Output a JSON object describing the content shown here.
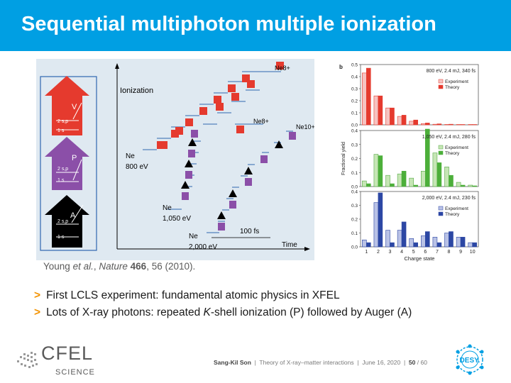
{
  "header": {
    "title": "Sequential multiphoton multiple ionization"
  },
  "figure_a": {
    "ionization_label": "Ionization",
    "time_label": "Time",
    "time_scale_label": "100 fs",
    "ne_label": "Ne",
    "e800_label": "800 eV",
    "e1050_label": "1,050 eV",
    "e2000_label": "2,000 eV",
    "ne8_label": "Ne8+",
    "ne10_label": "Ne10+",
    "letter_v": "V",
    "letter_p": "P",
    "letter_a": "A",
    "shell_2sp": "2 s,p",
    "shell_1s": "1 s",
    "colors": {
      "v": "#e53a2e",
      "p": "#8b4fa8",
      "a": "#000000",
      "bg": "#dfe9f1"
    }
  },
  "chart_data": [
    {
      "type": "bar",
      "panel_label": "b",
      "annotation": "800 eV, 2.4 mJ, 340 fs",
      "categories": [
        "1",
        "2",
        "3",
        "4",
        "5",
        "6",
        "7",
        "8",
        "9",
        "10"
      ],
      "series": [
        {
          "name": "Experiment",
          "color_fill": "#f6c3c1",
          "color_stroke": "#e53a2e",
          "values": [
            0.43,
            0.24,
            0.14,
            0.07,
            0.03,
            0.01,
            0.005,
            0.003,
            0.002,
            0.001
          ]
        },
        {
          "name": "Theory",
          "color_fill": "#e53a2e",
          "color_stroke": "#e53a2e",
          "values": [
            0.47,
            0.24,
            0.14,
            0.08,
            0.04,
            0.015,
            0.008,
            0.005,
            0.003,
            0.002
          ]
        }
      ],
      "ylim": [
        0,
        0.5
      ],
      "yticks": [
        "0.0",
        "0.1",
        "0.2",
        "0.3",
        "0.4",
        "0.5"
      ]
    },
    {
      "type": "bar",
      "annotation": "1,050 eV, 2.4 mJ, 280 fs",
      "categories": [
        "1",
        "2",
        "3",
        "4",
        "5",
        "6",
        "7",
        "8",
        "9",
        "10"
      ],
      "series": [
        {
          "name": "Experiment",
          "color_fill": "#c6e6b5",
          "color_stroke": "#55a845",
          "values": [
            0.04,
            0.23,
            0.08,
            0.09,
            0.06,
            0.11,
            0.24,
            0.14,
            0.03,
            0.01
          ]
        },
        {
          "name": "Theory",
          "color_fill": "#4caf3a",
          "color_stroke": "#4caf3a",
          "values": [
            0.02,
            0.22,
            0.02,
            0.11,
            0.01,
            0.41,
            0.17,
            0.08,
            0.01,
            0.005
          ]
        }
      ],
      "ylim": [
        0,
        0.4
      ],
      "yticks": [
        "0.0",
        "0.1",
        "0.2",
        "0.3",
        "0.4"
      ],
      "ylabel": "Fractional yield"
    },
    {
      "type": "bar",
      "annotation": "2,000 eV, 2.4 mJ, 230 fs",
      "categories": [
        "1",
        "2",
        "3",
        "4",
        "5",
        "6",
        "7",
        "8",
        "9",
        "10"
      ],
      "series": [
        {
          "name": "Experiment",
          "color_fill": "#b9c2e6",
          "color_stroke": "#2c47a4",
          "values": [
            0.05,
            0.32,
            0.12,
            0.12,
            0.06,
            0.08,
            0.07,
            0.1,
            0.07,
            0.03
          ]
        },
        {
          "name": "Theory",
          "color_fill": "#2c47a4",
          "color_stroke": "#2c47a4",
          "values": [
            0.03,
            0.39,
            0.03,
            0.18,
            0.03,
            0.11,
            0.03,
            0.11,
            0.07,
            0.03
          ]
        }
      ],
      "ylim": [
        0,
        0.4
      ],
      "yticks": [
        "0.0",
        "0.1",
        "0.2",
        "0.3",
        "0.4"
      ],
      "xlabel": "Charge state"
    }
  ],
  "citation": {
    "authors": "Young ",
    "etal": "et al.",
    "journal": "Nature",
    "volume": "466",
    "pages": ", 56 (2010)."
  },
  "bullets": {
    "arrow": ">",
    "b1": "First LCLS experiment: fundamental atomic physics in XFEL",
    "b2_pre": "Lots of X-ray photons: repeated ",
    "b2_k": "K",
    "b2_post": "-shell ionization (P) followed by Auger (A)"
  },
  "footer": {
    "cfel": "CFEL",
    "science": "SCIENCE",
    "author": "Sang-Kil Son",
    "sep": "|",
    "talk": "Theory of X-ray–matter interactions",
    "date": "June 16, 2020",
    "page": "50",
    "total": "/ 60",
    "desy": "DESY."
  }
}
